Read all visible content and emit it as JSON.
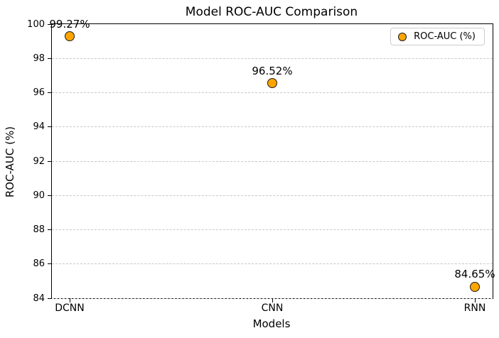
{
  "chart_data": {
    "type": "scatter",
    "title": "Model ROC-AUC Comparison",
    "xlabel": "Models",
    "ylabel": "ROC-AUC (%)",
    "categories": [
      "DCNN",
      "CNN",
      "RNN"
    ],
    "values": [
      99.27,
      96.52,
      84.65
    ],
    "point_labels": [
      "99.27%",
      "96.52%",
      "84.65%"
    ],
    "ylim": [
      84,
      100
    ],
    "yticks": [
      84,
      86,
      88,
      90,
      92,
      94,
      96,
      98,
      100
    ],
    "grid": true,
    "grid_style": "dashed",
    "legend": {
      "label": "ROC-AUC (%)",
      "position": "upper right"
    },
    "colors": {
      "marker_fill": "#FFA500",
      "marker_edge": "#1a1a1a",
      "grid": "#c8c8c8",
      "spine": "#000000"
    }
  }
}
